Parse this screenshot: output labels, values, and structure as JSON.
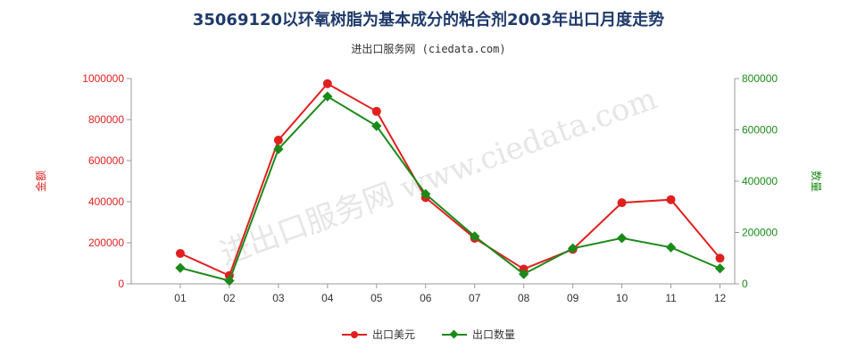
{
  "title": "35069120以环氧树脂为基本成分的粘合剂2003年出口月度走势",
  "subtitle": "进出口服务网 (ciedata.com)",
  "watermark": "进出口服务网 www.ciedata.com",
  "colors": {
    "usd": "#e0201f",
    "qty": "#1a8a1a"
  },
  "chart_data": {
    "type": "line",
    "categories": [
      "01",
      "02",
      "03",
      "04",
      "05",
      "06",
      "07",
      "08",
      "09",
      "10",
      "11",
      "12"
    ],
    "series": [
      {
        "name": "出口美元",
        "axis": "left",
        "values": [
          148000,
          40000,
          700000,
          975000,
          840000,
          420000,
          222000,
          72000,
          168000,
          395000,
          410000,
          125000
        ]
      },
      {
        "name": "出口数量",
        "axis": "right",
        "values": [
          62000,
          12000,
          525000,
          730000,
          615000,
          350000,
          185000,
          38000,
          138000,
          178000,
          142000,
          60000
        ]
      }
    ],
    "ylabel_left": "金额",
    "ylabel_right": "数量",
    "ylim_left": [
      0,
      1000000
    ],
    "ylim_right": [
      0,
      800000
    ],
    "yticks_left": [
      "0",
      "200000",
      "400000",
      "600000",
      "800000",
      "1000000"
    ],
    "yticks_right": [
      "0",
      "200000",
      "400000",
      "600000",
      "800000"
    ],
    "legend_position": "bottom"
  }
}
